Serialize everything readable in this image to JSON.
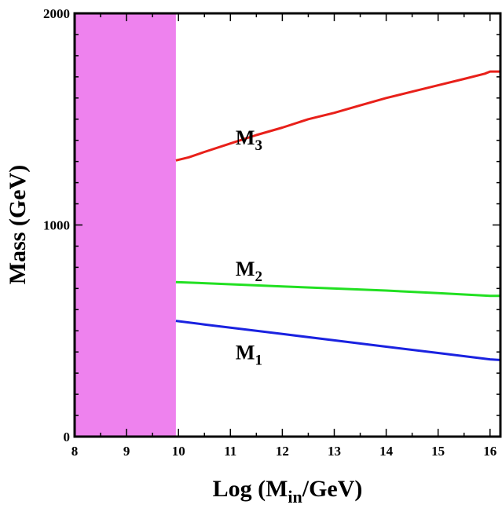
{
  "chart_data": {
    "type": "line",
    "title": "",
    "xlabel": {
      "main": "Log (M",
      "sub": "in",
      "tail": "/GeV)"
    },
    "ylabel": "Mass (GeV)",
    "xlim": [
      8,
      16.2
    ],
    "ylim": [
      0,
      2000
    ],
    "x_ticks": [
      8,
      9,
      10,
      11,
      12,
      13,
      14,
      15,
      16
    ],
    "x_tick_labels": [
      "8",
      "9",
      "10",
      "11",
      "12",
      "13",
      "14",
      "15",
      "16"
    ],
    "y_ticks": [
      0,
      1000,
      2000
    ],
    "y_tick_labels": [
      "0",
      "1000",
      "2000"
    ],
    "excluded_region": {
      "x_from": 8,
      "x_to": 9.95,
      "color": "#ee82ee"
    },
    "series": [
      {
        "name": "M3",
        "label_main": "M",
        "label_sub": "3",
        "color": "#e8201a",
        "label_at": [
          11.1,
          1380
        ],
        "x": [
          9.95,
          10.2,
          10.5,
          11,
          11.5,
          12,
          12.5,
          13,
          13.5,
          14,
          14.5,
          15,
          15.5,
          15.9,
          16.0,
          16.2
        ],
        "values": [
          1305,
          1320,
          1345,
          1385,
          1425,
          1460,
          1500,
          1530,
          1565,
          1600,
          1630,
          1660,
          1690,
          1715,
          1725,
          1725
        ]
      },
      {
        "name": "M2",
        "label_main": "M",
        "label_sub": "2",
        "color": "#22e022",
        "label_at": [
          11.1,
          760
        ],
        "x": [
          9.95,
          10.5,
          11,
          12,
          13,
          14,
          15,
          16,
          16.2
        ],
        "values": [
          730,
          725,
          720,
          710,
          700,
          690,
          678,
          665,
          665
        ]
      },
      {
        "name": "M1",
        "label_main": "M",
        "label_sub": "1",
        "color": "#1a22e0",
        "label_at": [
          11.1,
          365
        ],
        "x": [
          9.95,
          10.5,
          11,
          12,
          13,
          14,
          15,
          16,
          16.2
        ],
        "values": [
          547,
          530,
          515,
          485,
          455,
          425,
          395,
          365,
          362
        ]
      }
    ]
  }
}
